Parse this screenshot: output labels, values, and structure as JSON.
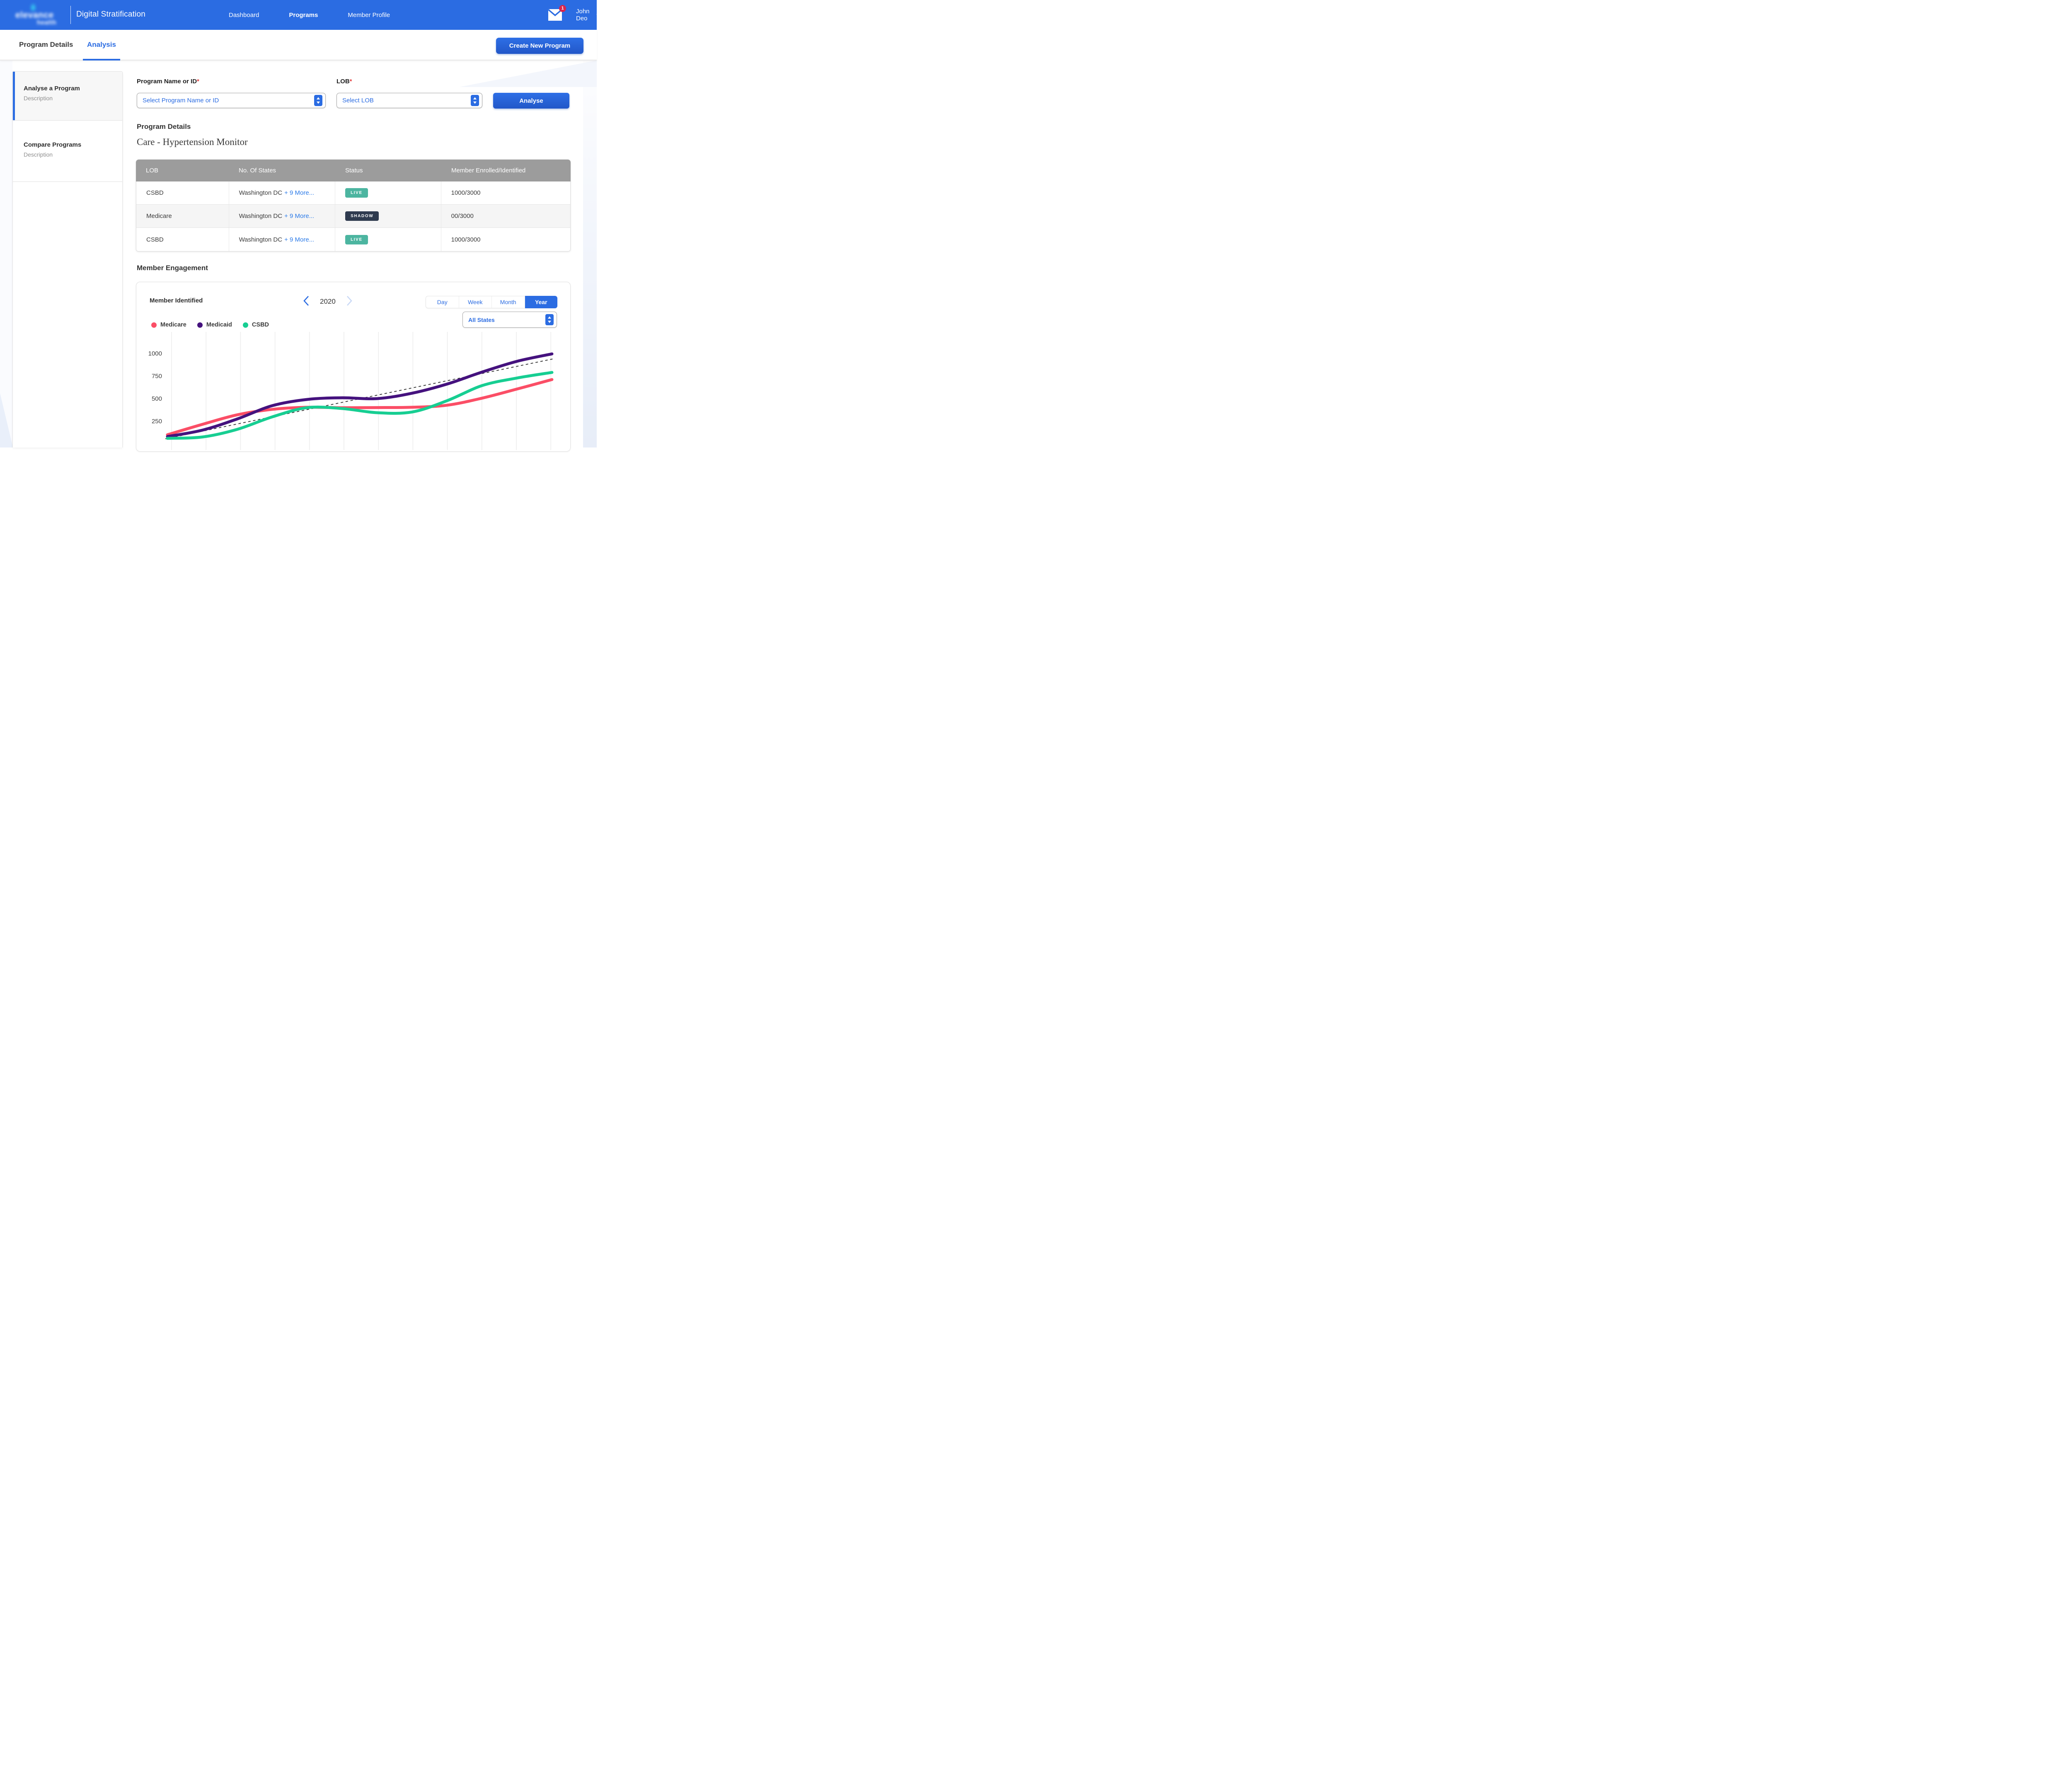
{
  "header": {
    "logo_line1": "elevance",
    "logo_line2": "health",
    "app_title": "Digital Stratification",
    "nav": [
      {
        "label": "Dashboard",
        "active": false
      },
      {
        "label": "Programs",
        "active": true
      },
      {
        "label": "Member Profile",
        "active": false
      }
    ],
    "notification_count": "1",
    "user_name": "John Deo"
  },
  "tabs": {
    "program_details": "Program Details",
    "analysis": "Analysis",
    "active_tab": "Analysis"
  },
  "create_program_button": "Create New Program",
  "sidebar": {
    "items": [
      {
        "title": "Analyse a Program",
        "description": "Description",
        "active": true
      },
      {
        "title": "Compare Programs",
        "description": "Description",
        "active": false
      }
    ]
  },
  "form": {
    "program_label": "Program Name or ID",
    "required_marker": "*",
    "program_placeholder": "Select Program Name or ID",
    "lob_label": "LOB",
    "lob_placeholder": "Select LOB",
    "analyse_button": "Analyse"
  },
  "program_details": {
    "heading": "Program Details",
    "program_name": "Care - Hypertension Monitor",
    "table": {
      "columns": [
        "LOB",
        "No. Of States",
        "Status",
        "Member Enrolled/Identified"
      ],
      "rows": [
        {
          "lob": "CSBD",
          "states": "Washington DC",
          "more": "+ 9 More...",
          "status": "LIVE",
          "status_style": "live",
          "members": "1000/3000",
          "alt": false
        },
        {
          "lob": "Medicare",
          "states": "Washington DC",
          "more": "+ 9 More...",
          "status": "SHADOW",
          "status_style": "shadow",
          "members": "00/3000",
          "alt": true
        },
        {
          "lob": "CSBD",
          "states": "Washington DC",
          "more": "+ 9 More...",
          "status": "LIVE",
          "status_style": "live",
          "members": "1000/3000",
          "alt": false
        }
      ]
    }
  },
  "member_engagement": {
    "heading": "Member Engagement",
    "chart_title": "Member Identified",
    "year": "2020",
    "period_options": [
      "Day",
      "Week",
      "Month",
      "Year"
    ],
    "selected_period": "Year",
    "states_filter": "All States"
  },
  "chart_data": {
    "type": "line",
    "title": "Member Identified",
    "x": [
      1,
      2,
      3,
      4,
      5,
      6,
      7,
      8,
      9,
      10,
      11,
      12
    ],
    "xlabels_visible": false,
    "yticks": [
      250,
      500,
      750,
      1000
    ],
    "ylim": [
      0,
      1100
    ],
    "grid": "vertical-only",
    "legend_position": "top-left",
    "series": [
      {
        "name": "Medicare",
        "color": "#fb4e66",
        "values": [
          100,
          215,
          321,
          381,
          404,
          399,
          401,
          404,
          427,
          505,
          606,
          711
        ]
      },
      {
        "name": "Medicaid",
        "color": "#45127e",
        "values": [
          80,
          151,
          275,
          422,
          491,
          509,
          500,
          560,
          661,
          794,
          913,
          995
        ]
      },
      {
        "name": "CSBD",
        "color": "#17ce92",
        "values": [
          60,
          75,
          160,
          298,
          400,
          390,
          344,
          352,
          477,
          644,
          728,
          790
        ]
      }
    ],
    "trendline": {
      "style": "dashed",
      "color": "#3f3f3f",
      "start_value": 55,
      "end_value": 941
    }
  }
}
